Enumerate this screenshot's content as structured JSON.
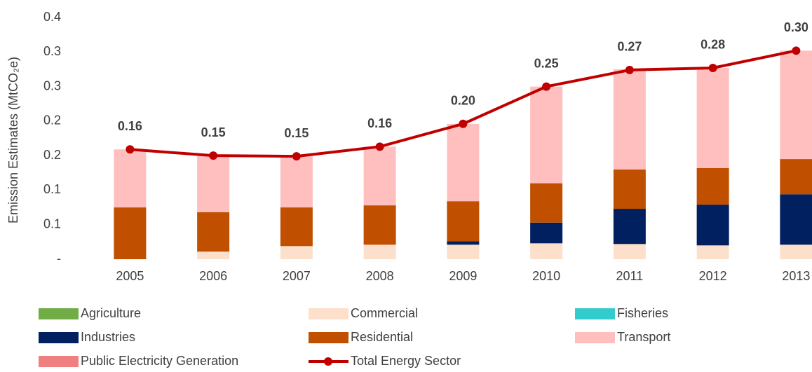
{
  "chart_data": {
    "type": "bar",
    "y_label": "Emission Estimates (MtCO₂e)",
    "categories": [
      "2005",
      "2006",
      "2007",
      "2008",
      "2009",
      "2010",
      "2011",
      "2012",
      "2013"
    ],
    "ylim": [
      0,
      0.35
    ],
    "yticks": [
      {
        "value": 0,
        "label": "-"
      },
      {
        "value": 0.05,
        "label": "0.1"
      },
      {
        "value": 0.1,
        "label": "0.1"
      },
      {
        "value": 0.15,
        "label": "0.2"
      },
      {
        "value": 0.2,
        "label": "0.2"
      },
      {
        "value": 0.25,
        "label": "0.3"
      },
      {
        "value": 0.3,
        "label": "0.3"
      },
      {
        "value": 0.35,
        "label": "0.4"
      }
    ],
    "grid": false,
    "series": [
      {
        "name": "Agriculture",
        "color": "#70ad47",
        "values": [
          0,
          0,
          0,
          0,
          0,
          0,
          0,
          0,
          0
        ]
      },
      {
        "name": "Commercial",
        "color": "#fde0cb",
        "values": [
          0,
          0.011,
          0.019,
          0.021,
          0.021,
          0.023,
          0.022,
          0.02,
          0.021
        ]
      },
      {
        "name": "Fisheries",
        "color": "#33cccc",
        "values": [
          0,
          0,
          0,
          0,
          0,
          0,
          0,
          0,
          0
        ]
      },
      {
        "name": "Industries",
        "color": "#002060",
        "values": [
          0,
          0,
          0,
          0,
          0.005,
          0.03,
          0.051,
          0.059,
          0.073
        ]
      },
      {
        "name": "Residential",
        "color": "#c05000",
        "values": [
          0.075,
          0.057,
          0.056,
          0.057,
          0.058,
          0.057,
          0.057,
          0.053,
          0.051
        ]
      },
      {
        "name": "Transport",
        "color": "#ffbfbf",
        "values": [
          0.084,
          0.082,
          0.074,
          0.085,
          0.112,
          0.14,
          0.145,
          0.145,
          0.157
        ]
      },
      {
        "name": "Public Electricity Generation",
        "color": "#f08080",
        "values": [
          0,
          0,
          0,
          0,
          0,
          0,
          0,
          0,
          0
        ]
      },
      {
        "name": "Total Energy Sector",
        "type": "line",
        "color": "#c00000",
        "values": [
          0.159,
          0.15,
          0.149,
          0.163,
          0.196,
          0.25,
          0.274,
          0.277,
          0.302
        ],
        "value_labels": [
          "0.16",
          "0.15",
          "0.15",
          "0.16",
          "0.20",
          "0.25",
          "0.27",
          "0.28",
          "0.30"
        ]
      }
    ]
  }
}
